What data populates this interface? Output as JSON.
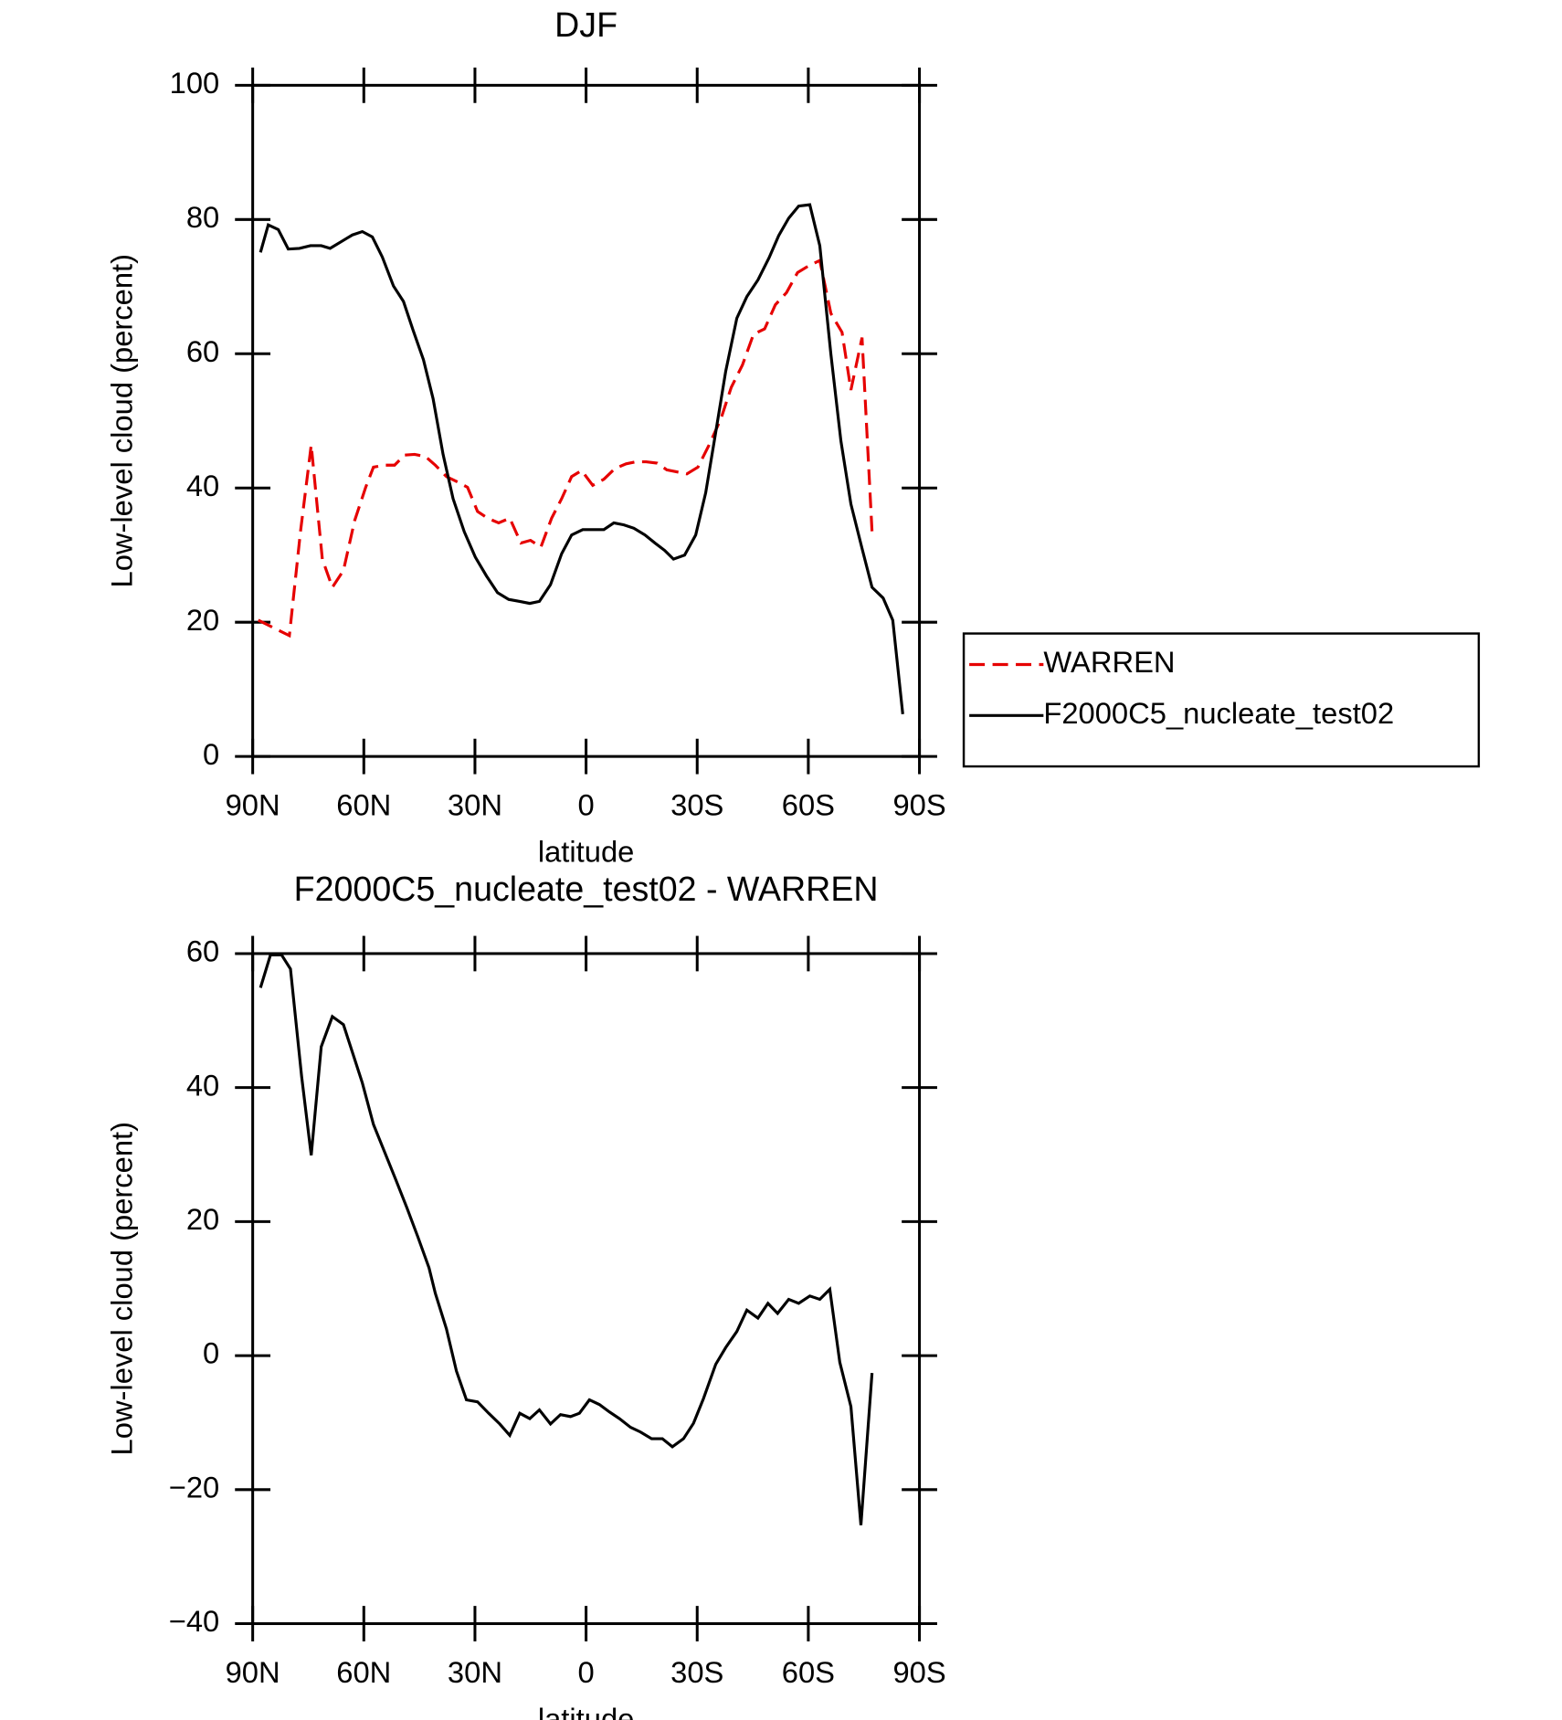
{
  "chart_data": [
    {
      "type": "line",
      "title": "DJF",
      "xlabel": "latitude",
      "ylabel": "Low-level cloud (percent)",
      "xlim": [
        90,
        -90
      ],
      "xticks": [
        {
          "value": 90,
          "label": "90N"
        },
        {
          "value": 60,
          "label": "60N"
        },
        {
          "value": 30,
          "label": "30N"
        },
        0,
        {
          "value": -30,
          "label": "30S"
        },
        {
          "value": -60,
          "label": "60S"
        },
        {
          "value": -90,
          "label": "90S"
        }
      ],
      "ylim": [
        0,
        100
      ],
      "yticks": [
        0,
        20,
        40,
        60,
        80,
        100
      ],
      "legend": "outside right",
      "series": [
        {
          "name": "WARREN",
          "color": "#e60000",
          "style": "dashed",
          "x": [
            88.5,
            80.1,
            77.1,
            74.2,
            71.2,
            68.5,
            65.5,
            62.5,
            59.5,
            57.4,
            54.4,
            51.7,
            49.0,
            46.3,
            43.4,
            40.7,
            37.7,
            34.7,
            32.0,
            29.3,
            26.6,
            23.6,
            20.6,
            17.6,
            15.0,
            12.2,
            9.3,
            6.6,
            3.9,
            1.2,
            -1.8,
            -4.8,
            -7.8,
            -10.8,
            -13.5,
            -16.2,
            -19.2,
            -21.8,
            -24.5,
            -27.2,
            -30.2,
            -33.2,
            -36.4,
            -39.2,
            -42.2,
            -45.2,
            -48.2,
            -51.1,
            -54.1,
            -57.1,
            -60.1,
            -63.1,
            -66.1,
            -69.1,
            -71.5,
            -74.5,
            -77.2
          ],
          "values": [
            20.3,
            18.0,
            33.5,
            46.4,
            29.4,
            25.2,
            27.7,
            35.1,
            40.1,
            43.1,
            43.4,
            43.4,
            44.9,
            45.0,
            44.7,
            43.4,
            41.7,
            40.9,
            40.1,
            36.5,
            35.5,
            34.8,
            35.5,
            31.8,
            32.2,
            31.2,
            35.5,
            38.4,
            41.7,
            42.6,
            40.4,
            41.3,
            42.9,
            43.6,
            43.9,
            43.9,
            43.7,
            42.7,
            42.4,
            42.1,
            43.1,
            46.4,
            50.3,
            55.0,
            58.3,
            62.9,
            63.7,
            67.3,
            69.1,
            72.1,
            73.1,
            73.9,
            66.0,
            63.2,
            54.6,
            62.4,
            33.5
          ]
        },
        {
          "name": "F2000C5_nucleate_test02",
          "color": "#000000",
          "style": "solid",
          "x": [
            87.9,
            85.8,
            83.1,
            80.4,
            77.4,
            74.4,
            71.5,
            69.1,
            66.1,
            63.1,
            60.4,
            57.7,
            55.0,
            52.0,
            49.3,
            46.7,
            43.9,
            41.3,
            38.6,
            35.9,
            32.9,
            29.9,
            26.9,
            23.9,
            20.9,
            17.9,
            15.2,
            12.6,
            9.6,
            6.6,
            3.9,
            0.9,
            -1.8,
            -4.8,
            -7.5,
            -10.2,
            -12.9,
            -15.9,
            -18.6,
            -21.2,
            -23.6,
            -26.6,
            -29.6,
            -32.3,
            -35.0,
            -37.7,
            -40.7,
            -43.4,
            -46.4,
            -49.4,
            -52.0,
            -54.7,
            -57.4,
            -60.4,
            -63.1,
            -66.1,
            -68.8,
            -71.5,
            -74.5,
            -77.2,
            -80.2,
            -82.8,
            -85.5
          ],
          "values": [
            75.1,
            79.2,
            78.5,
            75.6,
            75.7,
            76.1,
            76.1,
            75.7,
            76.7,
            77.7,
            78.2,
            77.4,
            74.4,
            70.1,
            67.8,
            63.5,
            59.1,
            53.3,
            45.0,
            38.4,
            33.5,
            29.7,
            26.9,
            24.4,
            23.4,
            23.1,
            22.8,
            23.1,
            25.6,
            30.2,
            33.0,
            33.8,
            33.8,
            33.8,
            34.8,
            34.5,
            34.0,
            33.0,
            31.8,
            30.7,
            29.4,
            30.0,
            33.0,
            39.3,
            48.3,
            57.4,
            65.3,
            68.5,
            71.0,
            74.3,
            77.6,
            80.2,
            82.0,
            82.2,
            76.1,
            59.9,
            47.0,
            37.6,
            31.0,
            25.2,
            23.6,
            20.3,
            6.3
          ]
        }
      ]
    },
    {
      "type": "line",
      "title": "F2000C5_nucleate_test02 - WARREN",
      "xlabel": "latitude",
      "ylabel": "Low-level cloud (percent)",
      "xlim": [
        90,
        -90
      ],
      "xticks": [
        {
          "value": 90,
          "label": "90N"
        },
        {
          "value": 60,
          "label": "60N"
        },
        {
          "value": 30,
          "label": "30N"
        },
        0,
        {
          "value": -30,
          "label": "30S"
        },
        {
          "value": -60,
          "label": "60S"
        },
        {
          "value": -90,
          "label": "90S"
        }
      ],
      "ylim": [
        -40,
        60
      ],
      "yticks": [
        {
          "value": -40,
          "label": "−40"
        },
        {
          "value": -20,
          "label": "−20"
        },
        0,
        20,
        40,
        60
      ],
      "series": [
        {
          "color": "#000000",
          "style": "solid",
          "x": [
            87.9,
            85.2,
            82.2,
            79.8,
            76.8,
            74.2,
            71.5,
            68.5,
            65.5,
            63.1,
            60.4,
            57.4,
            54.4,
            51.4,
            48.4,
            45.4,
            42.4,
            40.7,
            37.7,
            35.0,
            32.3,
            29.3,
            26.3,
            23.3,
            20.6,
            17.9,
            15.2,
            12.6,
            9.6,
            6.9,
            4.2,
            1.8,
            -0.9,
            -3.6,
            -6.3,
            -9.0,
            -12.0,
            -14.7,
            -17.7,
            -20.6,
            -23.3,
            -26.3,
            -29.0,
            -31.7,
            -35.0,
            -37.7,
            -40.7,
            -43.4,
            -46.4,
            -49.1,
            -51.7,
            -54.7,
            -57.4,
            -60.4,
            -63.1,
            -65.8,
            -68.5,
            -71.5,
            -74.2,
            -77.2
          ],
          "values": [
            54.9,
            59.8,
            59.8,
            57.7,
            41.7,
            29.9,
            46.1,
            50.6,
            49.4,
            45.3,
            40.7,
            34.5,
            30.4,
            26.3,
            22.1,
            17.7,
            13.1,
            9.3,
            4.0,
            -2.3,
            -6.6,
            -6.9,
            -8.6,
            -10.2,
            -11.9,
            -8.6,
            -9.4,
            -8.1,
            -10.2,
            -8.8,
            -9.1,
            -8.6,
            -6.6,
            -7.3,
            -8.4,
            -9.4,
            -10.7,
            -11.4,
            -12.4,
            -12.4,
            -13.6,
            -12.4,
            -10.1,
            -6.4,
            -1.3,
            1.2,
            3.6,
            6.8,
            5.6,
            7.8,
            6.3,
            8.4,
            7.8,
            8.9,
            8.4,
            9.9,
            -1.0,
            -7.6,
            -25.3,
            -2.6
          ]
        }
      ]
    }
  ]
}
